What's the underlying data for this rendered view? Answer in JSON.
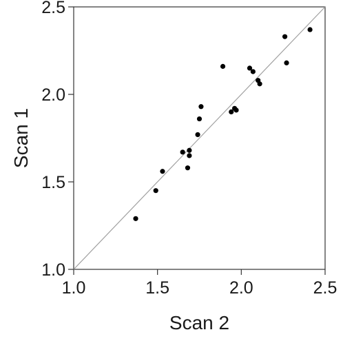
{
  "chart_data": {
    "type": "scatter",
    "title": "",
    "xlabel": "Scan 2",
    "ylabel": "Scan 1",
    "xlim": [
      1.0,
      2.5
    ],
    "ylim": [
      1.0,
      2.5
    ],
    "xticks": [
      "1.0",
      "1.5",
      "2.0",
      "2.5"
    ],
    "yticks": [
      "1.0",
      "1.5",
      "2.0",
      "2.5"
    ],
    "grid": false,
    "legend": "none",
    "reference_line": "y = x",
    "point_color": "#000000",
    "line_color": "#a0a0a0",
    "series": [
      {
        "x": [
          1.37,
          1.49,
          1.53,
          1.65,
          1.68,
          1.69,
          1.69,
          1.74,
          1.75,
          1.76,
          1.89,
          1.94,
          1.96,
          1.97,
          2.05,
          2.07,
          2.1,
          2.11,
          2.26,
          2.27,
          2.41
        ],
        "y": [
          1.29,
          1.45,
          1.56,
          1.67,
          1.58,
          1.68,
          1.65,
          1.77,
          1.86,
          1.93,
          2.16,
          1.9,
          1.92,
          1.91,
          2.15,
          2.13,
          2.08,
          2.06,
          2.33,
          2.18,
          2.37
        ]
      }
    ]
  }
}
